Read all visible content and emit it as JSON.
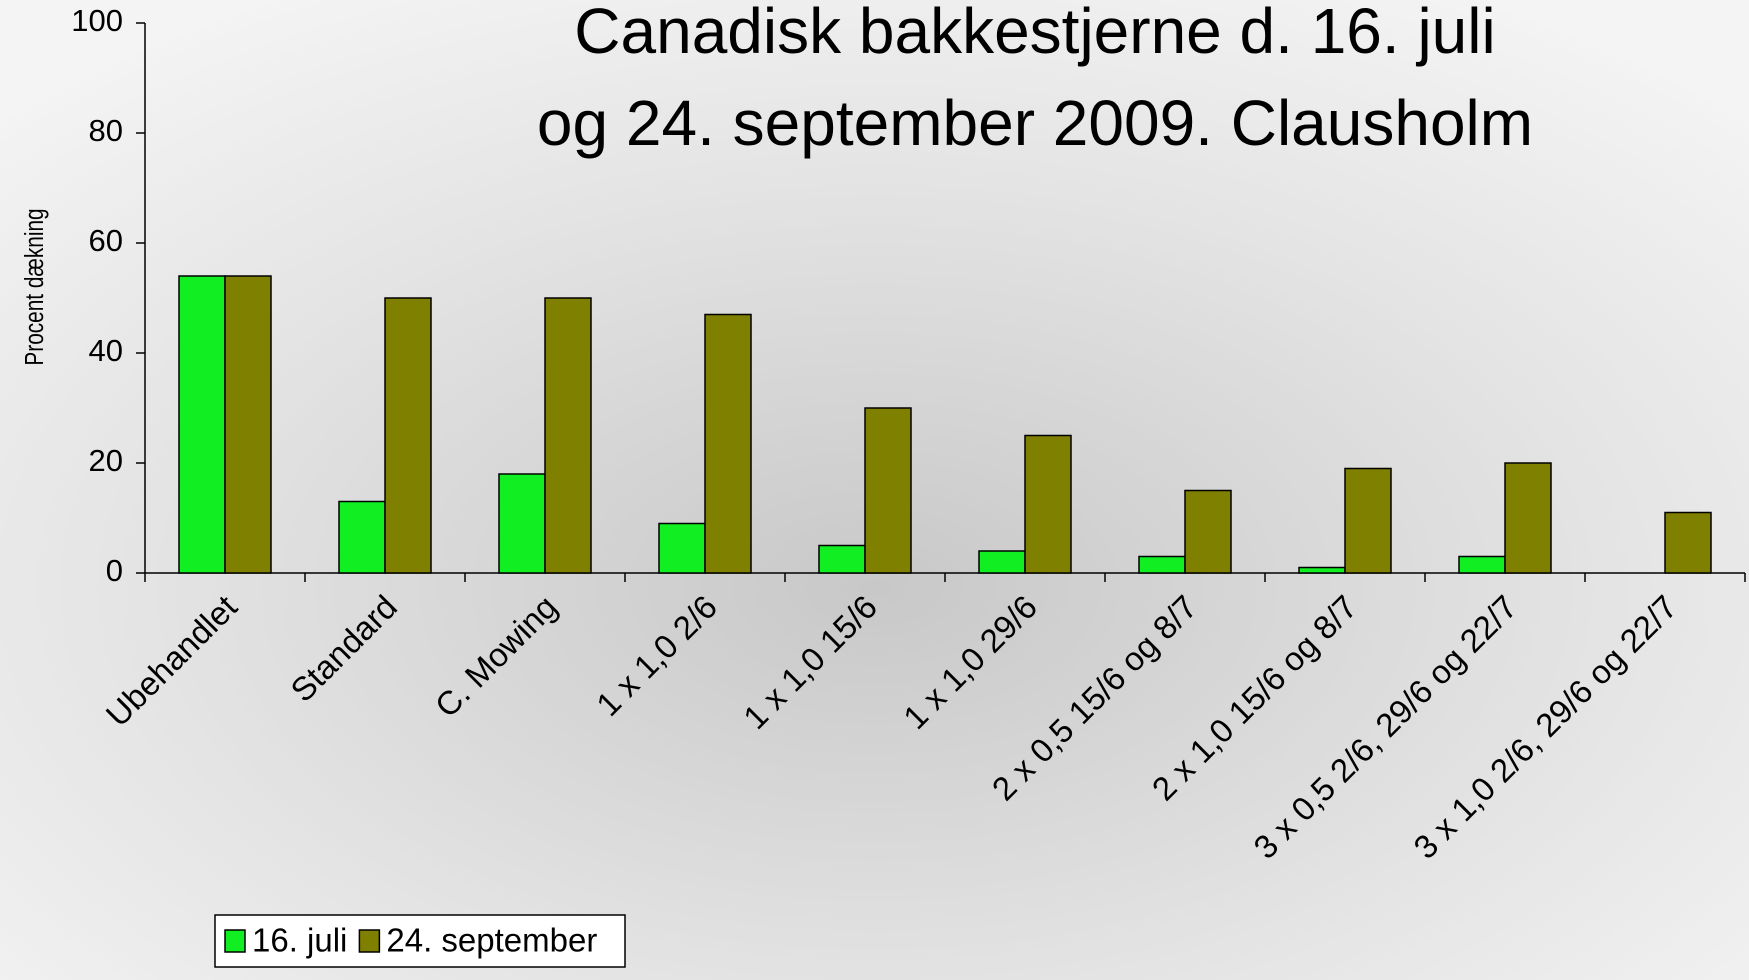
{
  "chart_data": {
    "type": "bar",
    "title": [
      "Canadisk bakkestjerne d. 16. juli",
      "og 24. september 2009. Clausholm"
    ],
    "y_label": "Procent dækning",
    "categories": [
      "Ubehandlet",
      "Standard",
      "C. Mowing",
      "1 x 1,0 2/6",
      "1 x 1,0 15/6",
      "1 x 1,0 29/6",
      "2 x 0,5 15/6 og 8/7",
      "2 x 1,0 15/6 og 8/7",
      "3 x 0,5 2/6, 29/6 og 22/7",
      "3 x 1,0 2/6, 29/6 og 22/7"
    ],
    "series": [
      {
        "name": "16. juli",
        "color": "#11ee22",
        "values": [
          54,
          13,
          18,
          9,
          5,
          4,
          3,
          1,
          3,
          0
        ]
      },
      {
        "name": "24. september",
        "color": "#808000",
        "values": [
          54,
          50,
          50,
          47,
          30,
          25,
          15,
          19,
          20,
          11
        ]
      }
    ],
    "ylim": [
      0,
      100
    ],
    "yticks": [
      0,
      20,
      40,
      60,
      80,
      100
    ],
    "grid": false,
    "legend": "bottom-left"
  }
}
